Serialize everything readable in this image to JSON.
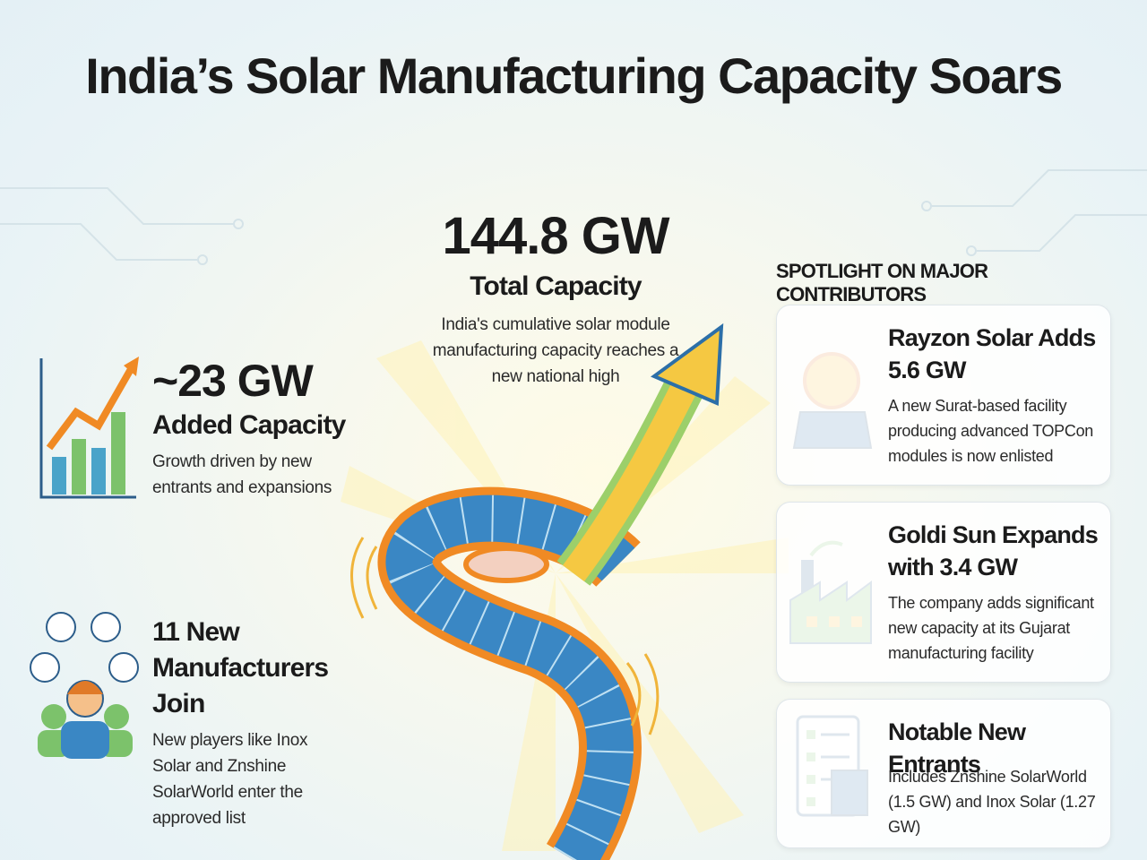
{
  "header": {
    "title": "India’s Solar Manufacturing Capacity Soars"
  },
  "center": {
    "value": "144.8 GW",
    "label": "Total Capacity",
    "description": "India's cumulative solar module manufacturing capacity reaches a new national high"
  },
  "highlights": [
    {
      "value": "~23 GW",
      "label": "Added Capacity",
      "description": "Growth driven by new entrants and expansions"
    },
    {
      "title": "11 New Manufacturers Join",
      "description": "New players like Inox Solar and Znshine SolarWorld enter the approved list"
    }
  ],
  "spotlight": {
    "heading": "SPOTLIGHT ON MAJOR CONTRIBUTORS",
    "cards": [
      {
        "title": "Rayzon Solar Adds 5.6 GW",
        "description": "A new Surat-based facility producing advanced TOPCon modules is now enlisted"
      },
      {
        "title": "Goldi Sun Expands with 3.4 GW",
        "description": "The company adds significant new capacity at its Gujarat manufacturing facility"
      },
      {
        "title": "Notable New Entrants",
        "description": "Includes Znshine SolarWorld (1.5 GW) and Inox Solar (1.27 GW)"
      }
    ]
  }
}
